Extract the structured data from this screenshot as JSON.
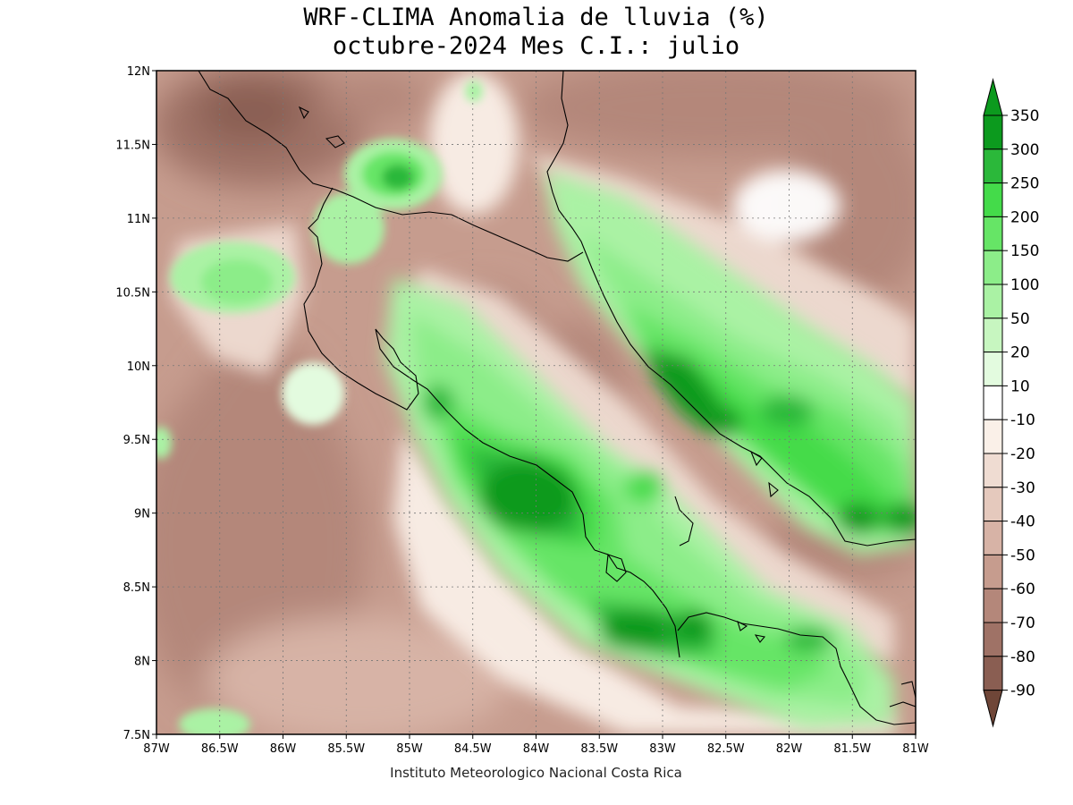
{
  "title_line1": "WRF-CLIMA Anomalia de lluvia (%)",
  "title_line2": "octubre-2024 Mes C.I.: julio",
  "footer": "Instituto Meteorologico Nacional Costa Rica",
  "axes": {
    "lon_range": [
      -87,
      -81
    ],
    "lat_range": [
      7.5,
      12
    ],
    "lon_ticks": [
      "87W",
      "86.5W",
      "86W",
      "85.5W",
      "85W",
      "84.5W",
      "84W",
      "83.5W",
      "83W",
      "82.5W",
      "82W",
      "81.5W",
      "81W"
    ],
    "lat_ticks": [
      "7.5N",
      "8N",
      "8.5N",
      "9N",
      "9.5N",
      "10N",
      "10.5N",
      "11N",
      "11.5N",
      "12N"
    ],
    "grid": true
  },
  "colorbar": {
    "labels": [
      "350",
      "300",
      "250",
      "200",
      "150",
      "100",
      "50",
      "20",
      "10",
      "-10",
      "-20",
      "-30",
      "-40",
      "-50",
      "-60",
      "-70",
      "-80",
      "-90"
    ],
    "colors": {
      "g350": "#0c9a1e",
      "g300": "#2bb83a",
      "g250": "#44db4a",
      "g200": "#66e566",
      "g150": "#8ced89",
      "g100": "#aaf2a4",
      "g50": "#c7f6c0",
      "g20": "#e3fbdf",
      "white": "#ffffff",
      "b10": "#faf0e8",
      "b20": "#efdcd2",
      "b30": "#e5c9bd",
      "b40": "#d7b3a6",
      "b50": "#c69c8e",
      "b60": "#b4877a",
      "b70": "#9f7266",
      "b80": "#8a5e52",
      "b90": "#6f4638"
    }
  }
}
